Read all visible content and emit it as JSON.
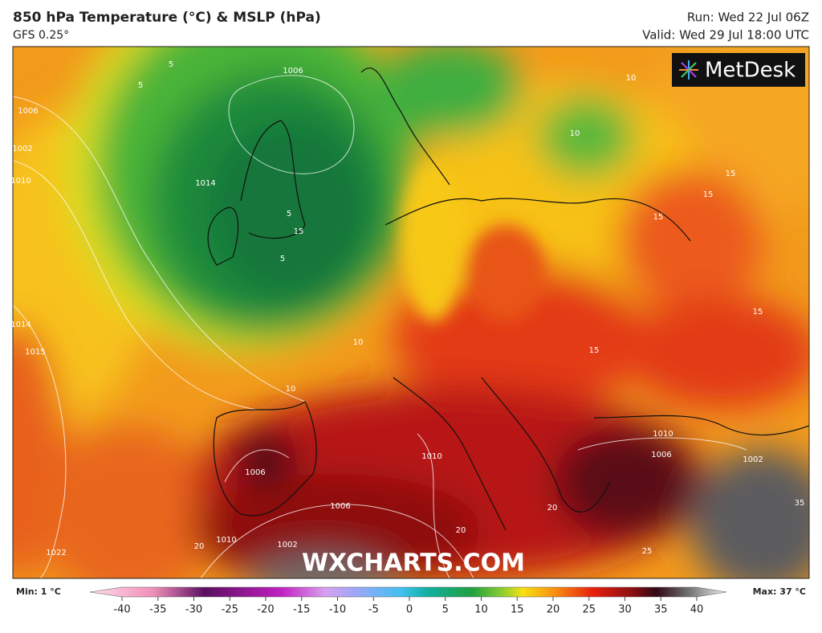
{
  "header": {
    "title": "850 hPa Temperature (°C) & MSLP (hPa)",
    "subtitle": "GFS 0.25°",
    "run": "Run: Wed 22 Jul 06Z",
    "valid": "Valid: Wed 29 Jul 18:00 UTC"
  },
  "map": {
    "logo": "MetDesk",
    "watermark": "WXCHARTS.COM",
    "contour_labels": [
      1006,
      5,
      5,
      1006,
      1002,
      1010,
      1014,
      5,
      15,
      5,
      1014,
      1015,
      10,
      10,
      15,
      15,
      15,
      15,
      10,
      10,
      1010,
      1006,
      1002,
      1006,
      1010,
      1006,
      20,
      20,
      25,
      20,
      1022,
      1010,
      1002,
      15,
      35
    ]
  },
  "colorbar": {
    "min_label": "Min: 1 °C",
    "max_label": "Max: 37 °C",
    "ticks": [
      -40,
      -35,
      -30,
      -25,
      -20,
      -15,
      -10,
      -5,
      0,
      5,
      10,
      15,
      20,
      25,
      30,
      35,
      40
    ]
  }
}
